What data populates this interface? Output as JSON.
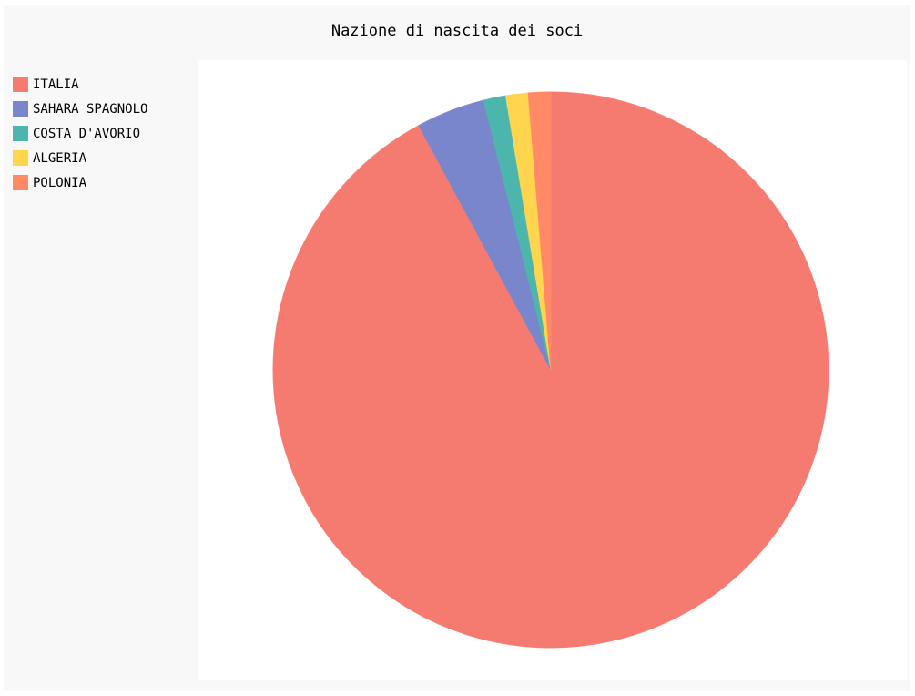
{
  "chart_data": {
    "type": "pie",
    "title": "Nazione di nascita dei soci",
    "legend": "top-left",
    "slices": [
      {
        "label": "ITALIA",
        "value": 92.3,
        "color": "#f57b71"
      },
      {
        "label": "SAHARA SPAGNOLO",
        "value": 4.0,
        "color": "#7986cc"
      },
      {
        "label": "COSTA D'AVORIO",
        "value": 1.3,
        "color": "#4db6ac"
      },
      {
        "label": "ALGERIA",
        "value": 1.3,
        "color": "#ffd54f"
      },
      {
        "label": "POLONIA",
        "value": 1.3,
        "color": "#ff8a65"
      }
    ]
  }
}
